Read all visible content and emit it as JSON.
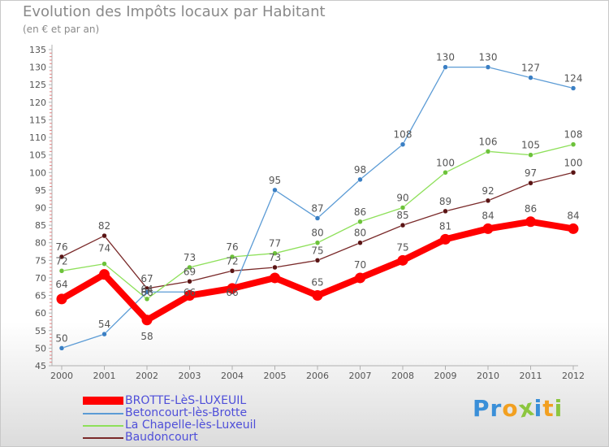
{
  "header": {
    "title": "Evolution des Impôts locaux par Habitant",
    "subtitle": "(en € et par an)"
  },
  "logo": {
    "text": "Proxiti",
    "letters": [
      {
        "ch": "P",
        "color": "#3a8fd8"
      },
      {
        "ch": "r",
        "color": "#3a8fd8"
      },
      {
        "ch": "o",
        "color": "#f2a021"
      },
      {
        "ch": "x",
        "color": "#8cc63f"
      },
      {
        "ch": "i",
        "color": "#3a8fd8"
      },
      {
        "ch": "t",
        "color": "#f2a021"
      },
      {
        "ch": "i",
        "color": "#8cc63f"
      }
    ]
  },
  "chart_data": {
    "type": "line",
    "title": "Evolution des Impôts locaux par Habitant",
    "subtitle": "(en € et par an)",
    "xlabel": "",
    "ylabel": "",
    "ylim": [
      45,
      135
    ],
    "ytick_step": 5,
    "grid": false,
    "legend_position": "bottom-left",
    "categories": [
      "2000",
      "2001",
      "2002",
      "2003",
      "2004",
      "2005",
      "2006",
      "2007",
      "2008",
      "2009",
      "2010",
      "2011",
      "2012"
    ],
    "series": [
      {
        "name": "BROTTE-LèS-LUXEUIL",
        "color": "#ff0000",
        "highlight": true,
        "values": [
          64,
          71,
          58,
          65,
          67,
          70,
          65,
          70,
          75,
          81,
          84,
          86,
          84
        ],
        "labels": [
          "64",
          "",
          "58",
          "",
          "",
          "",
          "65",
          "70",
          "75",
          "81",
          "84",
          "86",
          "84"
        ]
      },
      {
        "name": "Betoncourt-lès-Brotte",
        "color": "#5b9bd5",
        "marker": "#3a7fc4",
        "values": [
          50,
          54,
          66,
          66,
          66,
          95,
          87,
          98,
          108,
          130,
          130,
          127,
          124
        ],
        "labels": [
          "50",
          "54",
          "66",
          "66",
          "66",
          "95",
          "87",
          "98",
          "108",
          "130",
          "130",
          "127",
          "124"
        ]
      },
      {
        "name": "La Chapelle-lès-Luxeuil",
        "color": "#8ee05a",
        "marker": "#6cc23a",
        "values": [
          72,
          74,
          64,
          73,
          76,
          77,
          80,
          86,
          90,
          100,
          106,
          105,
          108
        ],
        "labels": [
          "72",
          "74",
          "64",
          "73",
          "76",
          "77",
          "80",
          "86",
          "90",
          "100",
          "106",
          "105",
          "108"
        ]
      },
      {
        "name": "Baudoncourt",
        "color": "#7a2a2a",
        "marker": "#5a1414",
        "values": [
          76,
          82,
          67,
          69,
          72,
          73,
          75,
          80,
          85,
          89,
          92,
          97,
          100
        ],
        "labels": [
          "76",
          "82",
          "67",
          "69",
          "72",
          "73",
          "75",
          "80",
          "85",
          "89",
          "92",
          "97",
          "100"
        ]
      }
    ]
  }
}
